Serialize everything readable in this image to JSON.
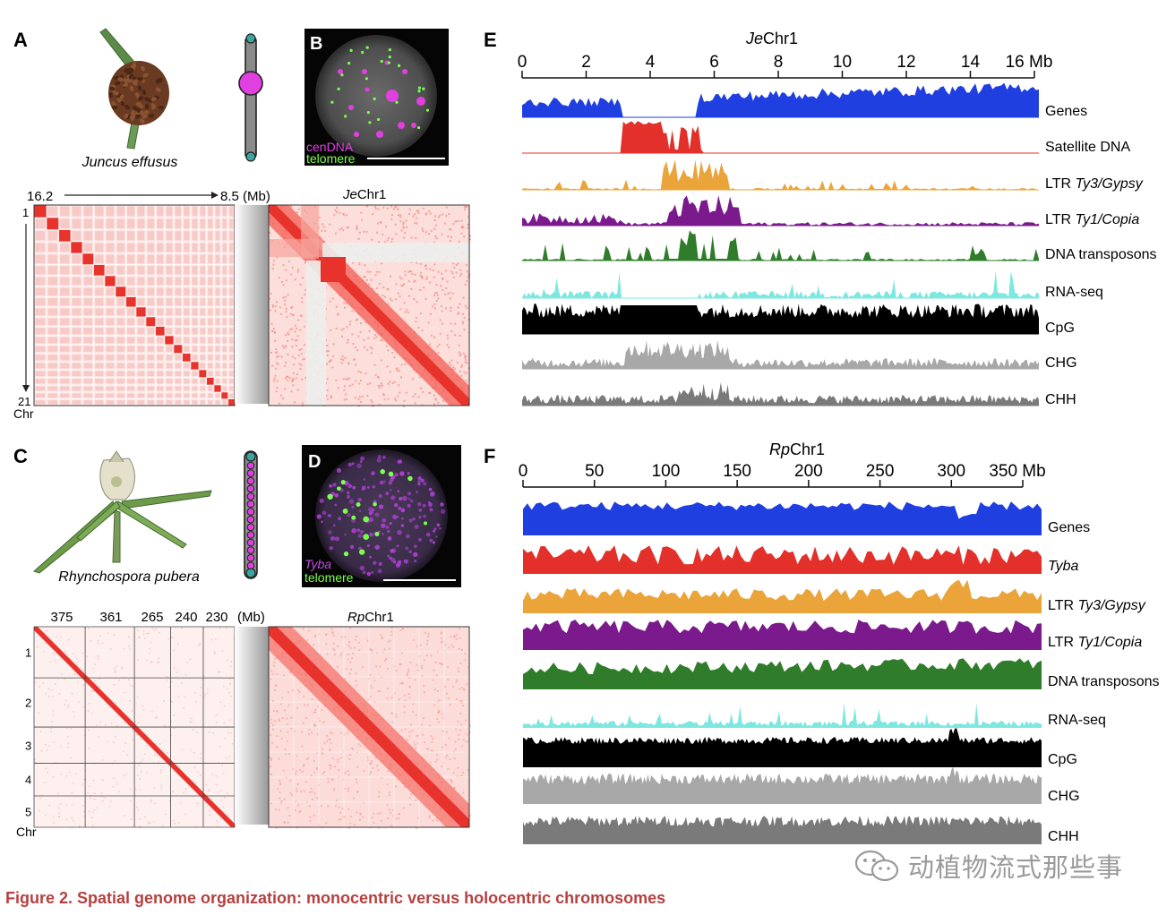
{
  "panels": {
    "A": {
      "letter": "A",
      "species": "Juncus effusus",
      "hic": {
        "left_label": "16.2",
        "right_label": "8.5 (Mb)",
        "top_row": "1",
        "bottom_row": "21",
        "axis": "Chr",
        "n_chr": 21
      },
      "zoom_title_italic": "Je",
      "zoom_title_rest": "Chr1"
    },
    "B": {
      "letter": "B",
      "legend1": "cenDNA",
      "legend2": "telomere"
    },
    "C": {
      "letter": "C",
      "species": "Rhynchospora pubera",
      "hic": {
        "sizes": [
          "375",
          "361",
          "265",
          "240",
          "230"
        ],
        "unit": "(Mb)",
        "rows": [
          "1",
          "2",
          "3",
          "4",
          "5"
        ],
        "axis": "Chr"
      },
      "zoom_title_italic": "Rp",
      "zoom_title_rest": "Chr1"
    },
    "D": {
      "letter": "D",
      "legend1": "Tyba",
      "legend2": "telomere"
    },
    "E": {
      "letter": "E",
      "title_italic": "Je",
      "title_rest": "Chr1",
      "ticks": [
        "0",
        "2",
        "4",
        "6",
        "8",
        "10",
        "12",
        "14",
        "16 Mb"
      ],
      "tracks": [
        {
          "name": "Genes",
          "color": "#1f3fe0",
          "plain": "Genes",
          "ital": ""
        },
        {
          "name": "Satellite DNA",
          "color": "#e3302a",
          "plain": "Satellite DNA",
          "ital": ""
        },
        {
          "name": "LTR Ty3/Gypsy",
          "color": "#eba43a",
          "plain": "LTR ",
          "ital": "Ty3/Gypsy"
        },
        {
          "name": "LTR Ty1/Copia",
          "color": "#7a1a8c",
          "plain": "LTR ",
          "ital": "Ty1/Copia"
        },
        {
          "name": "DNA transposons",
          "color": "#2f7d2a",
          "plain": "DNA transposons",
          "ital": ""
        },
        {
          "name": "RNA-seq",
          "color": "#7ee8e0",
          "plain": "RNA-seq",
          "ital": ""
        },
        {
          "name": "CpG",
          "color": "#000000",
          "plain": "CpG",
          "ital": ""
        },
        {
          "name": "CHG",
          "color": "#a8a8a8",
          "plain": "CHG",
          "ital": ""
        },
        {
          "name": "CHH",
          "color": "#7a7a7a",
          "plain": "CHH",
          "ital": ""
        }
      ]
    },
    "F": {
      "letter": "F",
      "title_italic": "Rp",
      "title_rest": "Chr1",
      "ticks": [
        "0",
        "50",
        "100",
        "150",
        "200",
        "250",
        "300",
        "350 Mb"
      ],
      "tracks": [
        {
          "name": "Genes",
          "color": "#1f3fe0",
          "plain": "Genes",
          "ital": ""
        },
        {
          "name": "Tyba",
          "color": "#e3302a",
          "plain": "",
          "ital": "Tyba"
        },
        {
          "name": "LTR Ty3/Gypsy",
          "color": "#eba43a",
          "plain": "LTR ",
          "ital": "Ty3/Gypsy"
        },
        {
          "name": "LTR Ty1/Copia",
          "color": "#7a1a8c",
          "plain": "LTR ",
          "ital": "Ty1/Copia"
        },
        {
          "name": "DNA transposons",
          "color": "#2f7d2a",
          "plain": "DNA transposons",
          "ital": ""
        },
        {
          "name": "RNA-seq",
          "color": "#7ee8e0",
          "plain": "RNA-seq",
          "ital": ""
        },
        {
          "name": "CpG",
          "color": "#000000",
          "plain": "CpG",
          "ital": ""
        },
        {
          "name": "CHG",
          "color": "#a8a8a8",
          "plain": "CHG",
          "ital": ""
        },
        {
          "name": "CHH",
          "color": "#7a7a7a",
          "plain": "CHH",
          "ital": ""
        }
      ]
    }
  },
  "colors": {
    "hic": "#e8332c",
    "cen": "#e040e0",
    "telomere": "#7cff4c",
    "chrom_body": "#8a8a8a",
    "chrom_end": "#3aa6a0",
    "caption": "#b5403f"
  },
  "caption": "Figure 2.  Spatial genome organization: monocentric versus holocentric chromosomes",
  "watermark": "动植物流式那些事"
}
